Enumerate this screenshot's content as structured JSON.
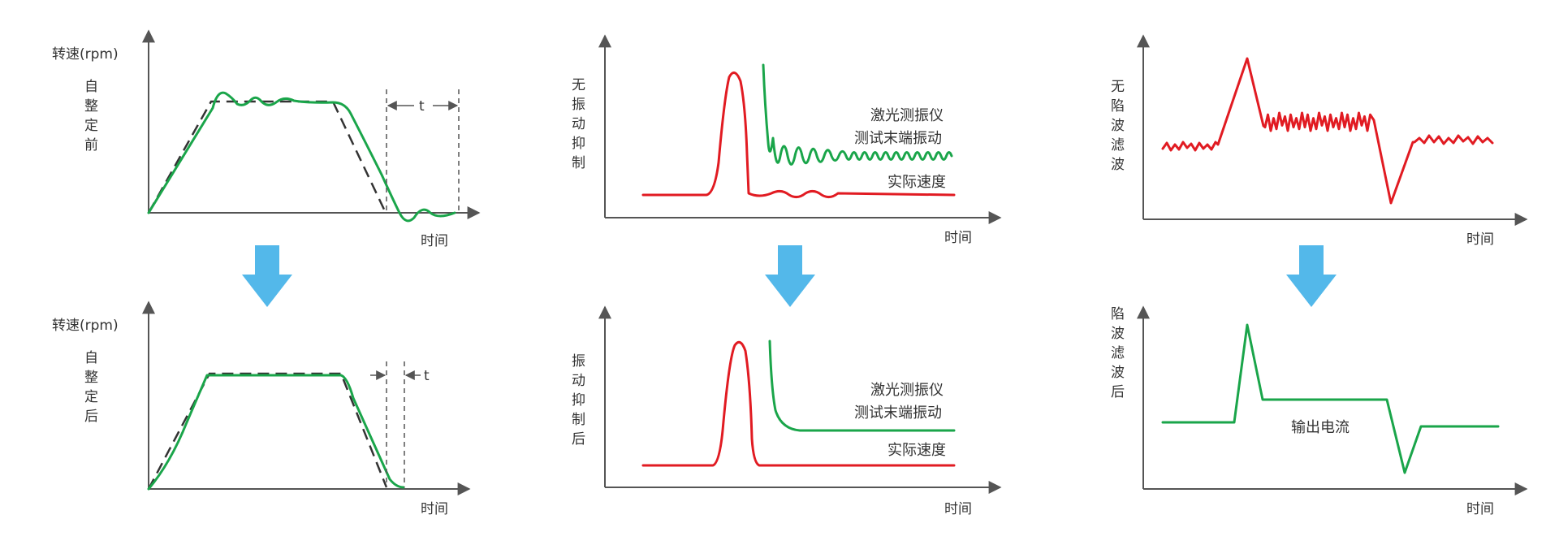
{
  "panel1_top": {
    "ylabel": "转速(rpm)",
    "vlabel": [
      "自",
      "整",
      "定",
      "前"
    ],
    "xlabel": "时间",
    "t_label": "t"
  },
  "panel1_bottom": {
    "ylabel": "转速(rpm)",
    "vlabel": [
      "自",
      "整",
      "定",
      "后"
    ],
    "xlabel": "时间",
    "t_label": "t"
  },
  "panel2_top": {
    "vlabel": [
      "无",
      "振",
      "动",
      "抑",
      "制"
    ],
    "legend_line1": "激光测振仪",
    "legend_line2": "测试末端振动",
    "legend_line3": "实际速度",
    "xlabel": "时间"
  },
  "panel2_bottom": {
    "vlabel": [
      "振",
      "动",
      "抑",
      "制",
      "后"
    ],
    "legend_line1": "激光测振仪",
    "legend_line2": "测试末端振动",
    "legend_line3": "实际速度",
    "xlabel": "时间"
  },
  "panel3_top": {
    "vlabel": [
      "无",
      "陷",
      "波",
      "滤",
      "波"
    ],
    "xlabel": "时间"
  },
  "panel3_bottom": {
    "vlabel": [
      "陷",
      "波",
      "滤",
      "波",
      "后"
    ],
    "curve_label": "输出电流",
    "xlabel": "时间"
  },
  "colors": {
    "green": "#1aa54a",
    "red": "#e11b22",
    "arrow": "#53b8ea"
  }
}
